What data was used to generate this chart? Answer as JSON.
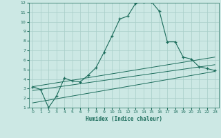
{
  "xlabel": "Humidex (Indice chaleur)",
  "bg_color": "#cce8e4",
  "grid_color": "#a8cec8",
  "line_color": "#1a6b5a",
  "xlim": [
    -0.5,
    23.5
  ],
  "ylim": [
    1,
    12
  ],
  "xticks": [
    0,
    1,
    2,
    3,
    4,
    5,
    6,
    7,
    8,
    9,
    10,
    11,
    12,
    13,
    14,
    15,
    16,
    17,
    18,
    19,
    20,
    21,
    22,
    23
  ],
  "yticks": [
    1,
    2,
    3,
    4,
    5,
    6,
    7,
    8,
    9,
    10,
    11,
    12
  ],
  "main_x": [
    0,
    1,
    2,
    3,
    4,
    5,
    6,
    7,
    8,
    9,
    10,
    11,
    12,
    13,
    14,
    15,
    16,
    17,
    18,
    19,
    20,
    21,
    22,
    23
  ],
  "main_y": [
    3.2,
    2.9,
    1.0,
    2.2,
    4.1,
    3.8,
    3.7,
    4.4,
    5.2,
    6.8,
    8.5,
    10.3,
    10.6,
    11.95,
    12.1,
    12.1,
    11.1,
    7.9,
    7.9,
    6.3,
    6.1,
    5.3,
    5.1,
    4.9
  ],
  "line2_x": [
    0,
    23
  ],
  "line2_y": [
    3.2,
    6.3
  ],
  "line3_x": [
    0,
    23
  ],
  "line3_y": [
    2.8,
    5.5
  ],
  "line4_x": [
    0,
    23
  ],
  "line4_y": [
    1.5,
    4.8
  ]
}
